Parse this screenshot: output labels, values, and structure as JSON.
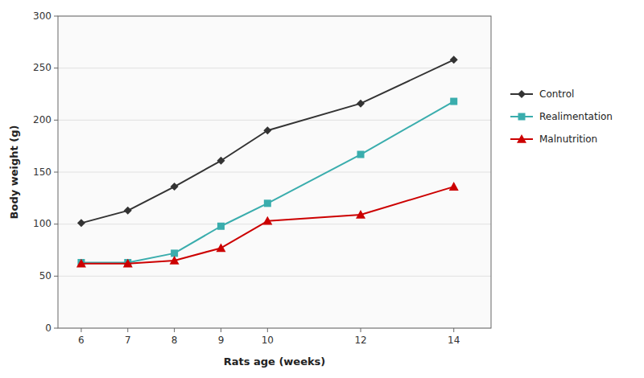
{
  "chart_data": {
    "type": "line",
    "x": [
      6,
      7,
      8,
      9,
      10,
      12,
      14
    ],
    "series": [
      {
        "name": "Control",
        "color": "#333333",
        "marker": "diamond",
        "values": [
          101,
          113,
          136,
          161,
          190,
          216,
          258
        ]
      },
      {
        "name": "Realimentation",
        "color": "#3aadad",
        "marker": "square",
        "values": [
          63,
          63,
          72,
          98,
          120,
          167,
          218
        ]
      },
      {
        "name": "Malnutrition",
        "color": "#cc0000",
        "marker": "triangle",
        "values": [
          62,
          62,
          65,
          77,
          103,
          109,
          136
        ]
      }
    ],
    "xlabel": "Rats age (weeks)",
    "ylabel": "Body weight (g)",
    "xlim": [
      5.5,
      14.8
    ],
    "ylim": [
      0,
      300
    ],
    "xticks": [
      6,
      7,
      8,
      9,
      10,
      12,
      14
    ],
    "yticks": [
      0,
      50,
      100,
      150,
      200,
      250,
      300
    ],
    "grid": true,
    "legend": "right"
  }
}
